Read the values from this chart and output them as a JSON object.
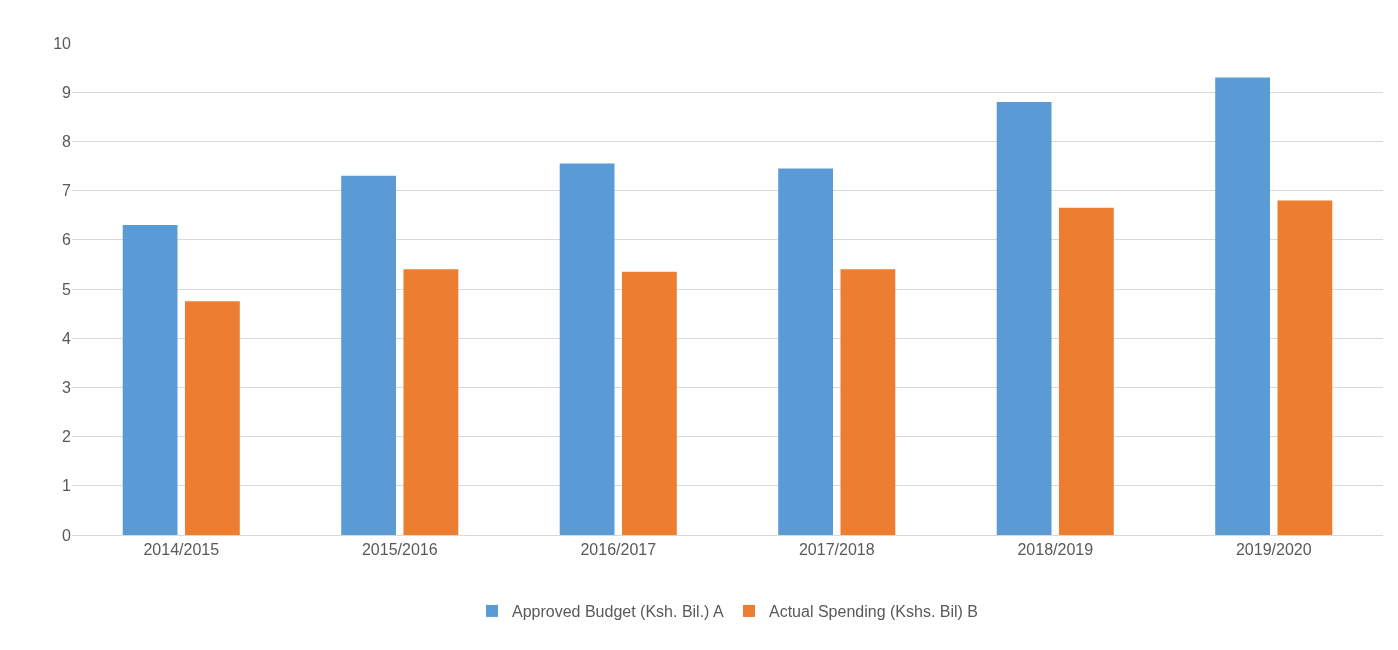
{
  "chart_data": {
    "type": "bar",
    "categories": [
      "2014/2015",
      "2015/2016",
      "2016/2017",
      "2017/2018",
      "2018/2019",
      "2019/2020"
    ],
    "series": [
      {
        "name": "Approved Budget (Ksh. Bil.) A",
        "color": "#5b9bd5",
        "values": [
          6.3,
          7.3,
          7.55,
          7.45,
          8.8,
          9.3
        ]
      },
      {
        "name": "Actual Spending (Kshs. Bil) B",
        "color": "#ed7d31",
        "values": [
          4.75,
          5.4,
          5.35,
          5.4,
          6.65,
          6.8
        ]
      }
    ],
    "ylim": [
      0,
      10
    ],
    "yticks": [
      0,
      1,
      2,
      3,
      4,
      5,
      6,
      7,
      8,
      9,
      10
    ],
    "grid": "y",
    "legend": "bottom"
  }
}
